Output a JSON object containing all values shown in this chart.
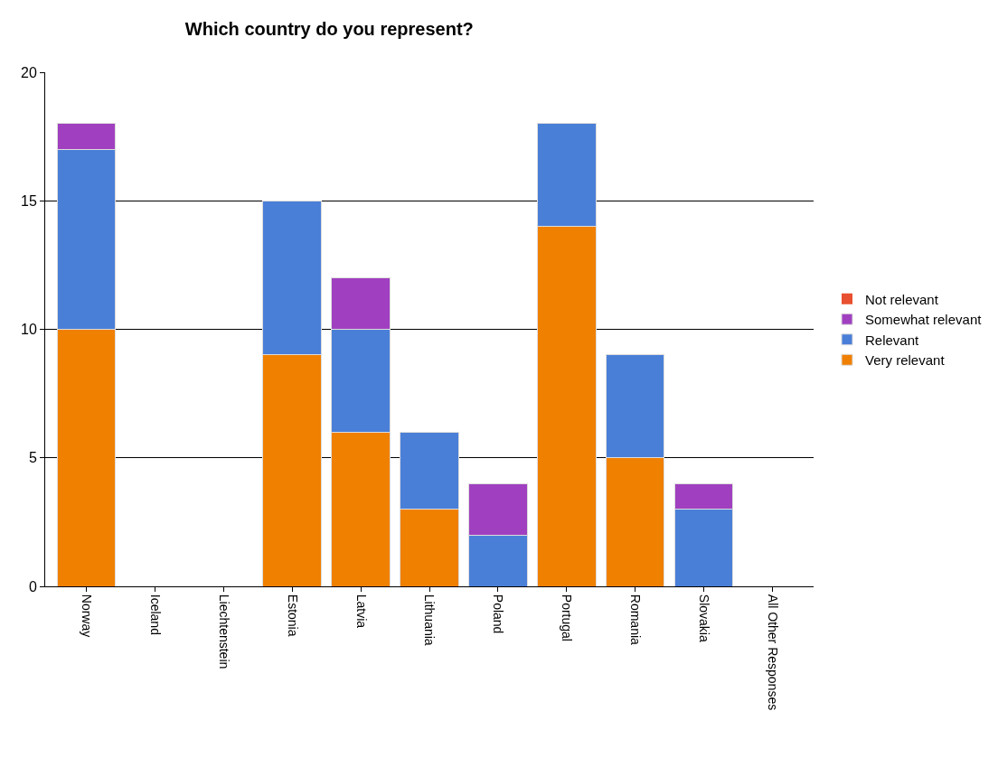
{
  "chart_data": {
    "type": "bar",
    "title": "Which country do you represent?",
    "categories": [
      "Norway",
      "Iceland",
      "Liechtenstein",
      "Estonia",
      "Latvia",
      "Lithuania",
      "Poland",
      "Portugal",
      "Romania",
      "Slovakia",
      "All Other Responses"
    ],
    "series": [
      {
        "name": "Very relevant",
        "color": "#f08000",
        "values": [
          10,
          0,
          0,
          9,
          6,
          3,
          0,
          14,
          5,
          0,
          0
        ]
      },
      {
        "name": "Relevant",
        "color": "#4a7fd8",
        "values": [
          7,
          0,
          0,
          6,
          4,
          3,
          2,
          4,
          4,
          3,
          0
        ]
      },
      {
        "name": "Somewhat relevant",
        "color": "#a040c0",
        "values": [
          1,
          0,
          0,
          0,
          2,
          0,
          2,
          0,
          0,
          1,
          0
        ]
      },
      {
        "name": "Not relevant",
        "color": "#e8502f",
        "values": [
          0,
          0,
          0,
          0,
          0,
          0,
          0,
          0,
          0,
          0,
          0
        ]
      }
    ],
    "stacked": true,
    "ylim": [
      0,
      20
    ],
    "yticks": [
      0,
      5,
      10,
      15,
      20
    ],
    "grid": "y",
    "legend": "right"
  }
}
